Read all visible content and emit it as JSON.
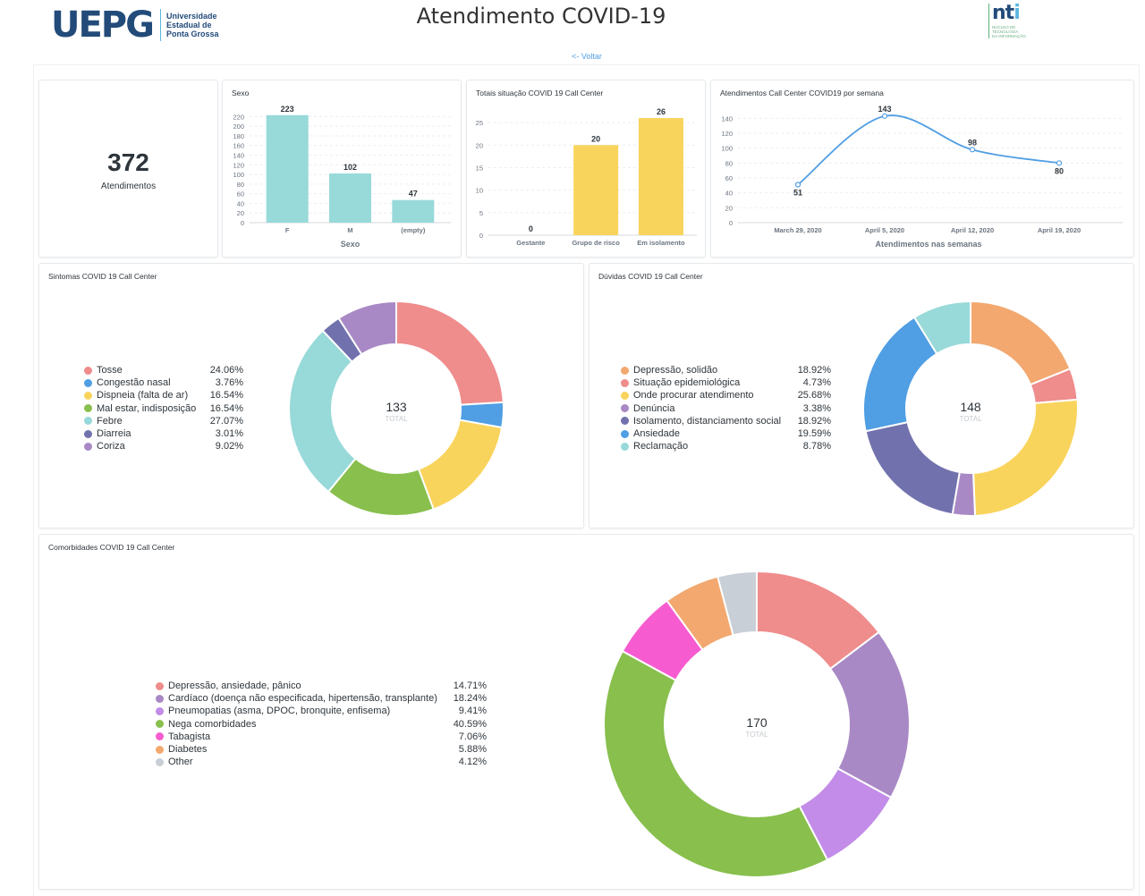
{
  "header": {
    "title": "Atendimento COVID-19",
    "back_link": "<- Voltar",
    "logo_left": {
      "mark": "UEPG",
      "line1": "Universidade",
      "line2": "Estadual de",
      "line3": "Ponta Grossa"
    },
    "logo_right": {
      "mark_a": "nt",
      "mark_b": "i",
      "line1": "NÚCLEO DE",
      "line2": "TECNOLOGIA",
      "line3": "DA INFORMAÇÃO"
    }
  },
  "scalar": {
    "value": "372",
    "label": "Atendimentos"
  },
  "chart_data": [
    {
      "id": "sexo",
      "type": "bar",
      "title": "Sexo",
      "categories": [
        "F",
        "M",
        "(empty)"
      ],
      "values": [
        223,
        102,
        47
      ],
      "xlabel": "Sexo",
      "ylabel": "",
      "ylim": [
        0,
        230
      ],
      "yticks": [
        0,
        20,
        40,
        60,
        80,
        100,
        120,
        140,
        160,
        180,
        200,
        220
      ],
      "color": "#98d9d9",
      "grid": true
    },
    {
      "id": "situacao",
      "type": "bar",
      "title": "Totais situação COVID 19 Call Center",
      "categories": [
        "Gestante",
        "Grupo de risco",
        "Em isolamento"
      ],
      "values": [
        0,
        20,
        26
      ],
      "xlabel": "",
      "ylabel": "",
      "ylim": [
        0,
        27
      ],
      "yticks": [
        0,
        5,
        10,
        15,
        20,
        25
      ],
      "color": "#f9d45c",
      "grid": true
    },
    {
      "id": "semanas",
      "type": "line",
      "title": "Atendimentos Call Center COVID19 por semana",
      "categories": [
        "March 29, 2020",
        "April 5, 2020",
        "April 12, 2020",
        "April 19, 2020"
      ],
      "values": [
        51,
        143,
        98,
        80
      ],
      "label_pos": [
        "below",
        "above",
        "above",
        "below"
      ],
      "xlabel": "Atendimentos nas semanas",
      "ylabel": "",
      "ylim": [
        0,
        150
      ],
      "yticks": [
        0,
        20,
        40,
        60,
        80,
        100,
        120,
        140
      ],
      "color": "#509ee3",
      "grid": true
    },
    {
      "id": "sintomas",
      "type": "pie",
      "title": "Sintomas COVID 19 Call Center",
      "total": "133",
      "total_label": "TOTAL",
      "slices": [
        {
          "name": "Tosse",
          "pct": "24.06%",
          "value": 24.06,
          "color": "#ef8c8c"
        },
        {
          "name": "Congestão nasal",
          "pct": "3.76%",
          "value": 3.76,
          "color": "#509ee3"
        },
        {
          "name": "Dispneia (falta de ar)",
          "pct": "16.54%",
          "value": 16.54,
          "color": "#f9d45c"
        },
        {
          "name": "Mal estar, indisposição",
          "pct": "16.54%",
          "value": 16.54,
          "color": "#88bf4d"
        },
        {
          "name": "Febre",
          "pct": "27.07%",
          "value": 27.07,
          "color": "#98d9d9"
        },
        {
          "name": "Diarreia",
          "pct": "3.01%",
          "value": 3.01,
          "color": "#7172ad"
        },
        {
          "name": "Coriza",
          "pct": "9.02%",
          "value": 9.02,
          "color": "#a989c5"
        }
      ]
    },
    {
      "id": "duvidas",
      "type": "pie",
      "title": "Dúvidas COVID 19 Call Center",
      "total": "148",
      "total_label": "TOTAL",
      "slices": [
        {
          "name": "Depressão, solidão",
          "pct": "18.92%",
          "value": 18.92,
          "color": "#f2a86f"
        },
        {
          "name": "Situação epidemiológica",
          "pct": "4.73%",
          "value": 4.73,
          "color": "#ef8c8c"
        },
        {
          "name": "Onde procurar atendimento",
          "pct": "25.68%",
          "value": 25.68,
          "color": "#f9d45c"
        },
        {
          "name": "Denúncia",
          "pct": "3.38%",
          "value": 3.38,
          "color": "#a989c5"
        },
        {
          "name": "Isolamento, distanciamento social",
          "pct": "18.92%",
          "value": 18.92,
          "color": "#7172ad"
        },
        {
          "name": "Ansiedade",
          "pct": "19.59%",
          "value": 19.59,
          "color": "#509ee3"
        },
        {
          "name": "Reclamação",
          "pct": "8.78%",
          "value": 8.78,
          "color": "#98d9d9"
        }
      ]
    },
    {
      "id": "comorbidades",
      "type": "pie",
      "title": "Comorbidades COVID 19 Call Center",
      "total": "170",
      "total_label": "TOTAL",
      "slices": [
        {
          "name": "Depressão, ansiedade, pânico",
          "pct": "14.71%",
          "value": 14.71,
          "color": "#ef8c8c"
        },
        {
          "name": "Cardíaco (doença não especificada, hipertensão, transplante)",
          "pct": "18.24%",
          "value": 18.24,
          "color": "#a989c5"
        },
        {
          "name": "Pneumopatias (asma, DPOC, bronquite, enfisema)",
          "pct": "9.41%",
          "value": 9.41,
          "color": "#c28ce8"
        },
        {
          "name": "Nega comorbidades",
          "pct": "40.59%",
          "value": 40.59,
          "color": "#88bf4d"
        },
        {
          "name": "Tabagista",
          "pct": "7.06%",
          "value": 7.06,
          "color": "#f65cd0"
        },
        {
          "name": "Diabetes",
          "pct": "5.88%",
          "value": 5.88,
          "color": "#f2a86f"
        },
        {
          "name": "Other",
          "pct": "4.12%",
          "value": 4.12,
          "color": "#c9cfd6"
        }
      ]
    }
  ]
}
